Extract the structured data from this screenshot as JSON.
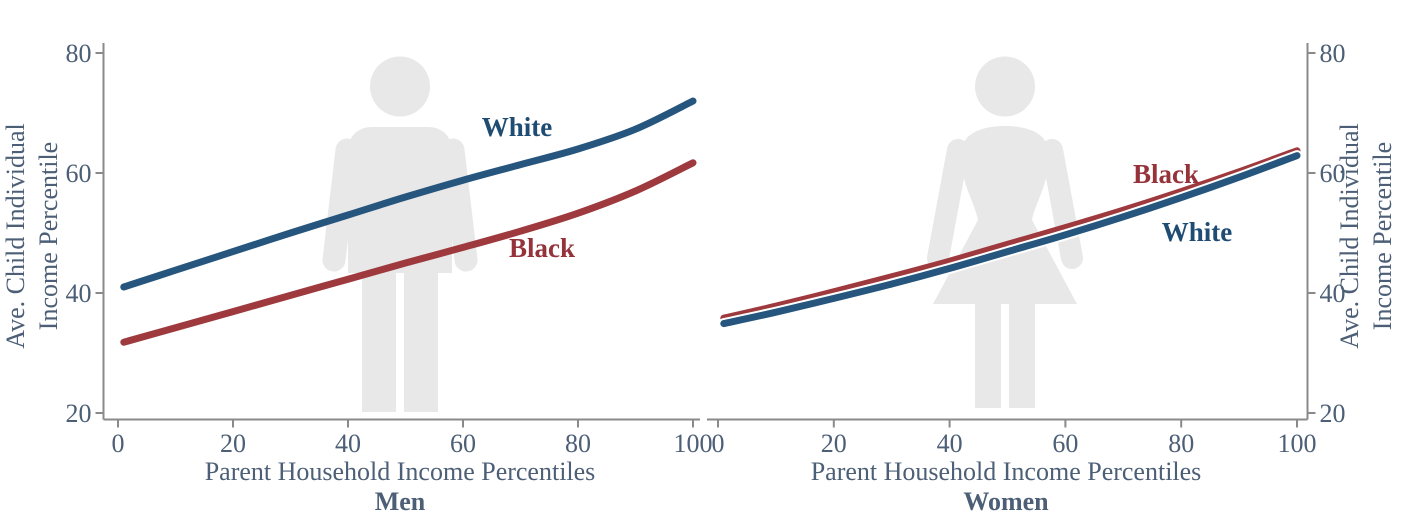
{
  "figure": {
    "y_axis_title_line1": "Ave. Child Individual",
    "y_axis_title_line2": "Income Percentile",
    "x_axis_title": "Parent Household Income Percentiles"
  },
  "colors": {
    "white_series_line": "#26567D",
    "black_series_line": "#9E3A3E",
    "white_series_label": "#1E4C73",
    "black_series_label": "#95323A",
    "axis_text": "#4C5F76",
    "axis_line": "#8A8A8A",
    "silhouette_fill": "#E8E8E8"
  },
  "chart_data": [
    {
      "type": "line",
      "panel": "men",
      "panel_label": "Men",
      "icon": "man-silhouette",
      "xlabel": "Parent Household Income Percentiles",
      "ylabel": "Ave. Child Individual Income Percentile",
      "xlim": [
        0,
        100
      ],
      "ylim": [
        20,
        80
      ],
      "xticks": [
        0,
        20,
        40,
        60,
        80,
        100
      ],
      "yticks": [
        20,
        40,
        60,
        80
      ],
      "y_axis_side": "left",
      "grid": false,
      "x": [
        1,
        10,
        20,
        30,
        40,
        50,
        60,
        70,
        80,
        90,
        100
      ],
      "series": [
        {
          "name": "Black",
          "values": [
            31.8,
            34.2,
            36.9,
            39.6,
            42.3,
            45.0,
            47.6,
            50.3,
            53.3,
            57.0,
            61.7
          ],
          "color_key": "black"
        },
        {
          "name": "White",
          "values": [
            41.0,
            43.8,
            46.9,
            50.0,
            53.0,
            56.0,
            58.8,
            61.4,
            64.0,
            67.3,
            72.0
          ],
          "color_key": "white"
        }
      ]
    },
    {
      "type": "line",
      "panel": "women",
      "panel_label": "Women",
      "icon": "woman-silhouette",
      "xlabel": "Parent Household Income Percentiles",
      "ylabel": "Ave. Child Individual Income Percentile",
      "xlim": [
        0,
        100
      ],
      "ylim": [
        20,
        80
      ],
      "xticks": [
        0,
        20,
        40,
        60,
        80,
        100
      ],
      "yticks": [
        20,
        40,
        60,
        80
      ],
      "y_axis_side": "right",
      "grid": false,
      "x": [
        1,
        10,
        20,
        30,
        40,
        50,
        60,
        70,
        80,
        90,
        100
      ],
      "series": [
        {
          "name": "Black",
          "values": [
            35.8,
            37.8,
            40.2,
            42.7,
            45.3,
            48.1,
            50.9,
            53.8,
            56.9,
            60.2,
            63.7
          ],
          "color_key": "black"
        },
        {
          "name": "White",
          "values": [
            34.9,
            36.8,
            39.1,
            41.5,
            44.1,
            46.9,
            49.7,
            52.7,
            55.9,
            59.3,
            62.9
          ],
          "color_key": "white",
          "halo": true
        }
      ]
    }
  ]
}
